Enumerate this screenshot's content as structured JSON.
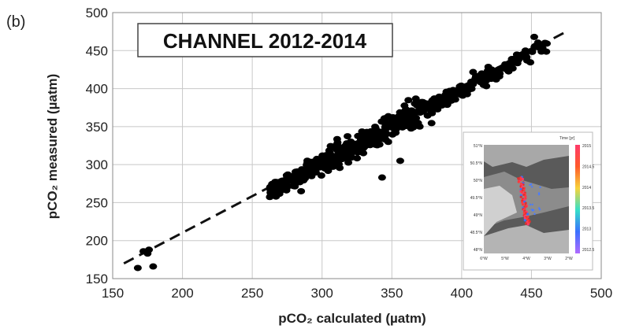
{
  "chart_data": {
    "type": "scatter",
    "panel_label": "(b)",
    "title": "CHANNEL 2012-2014",
    "xlabel": "pCO₂ calculated (µatm)",
    "ylabel": "pCO₂ measured (µatm)",
    "xlim": [
      150,
      500
    ],
    "ylim": [
      150,
      500
    ],
    "xticks": [
      "150",
      "200",
      "250",
      "300",
      "350",
      "400",
      "450",
      "500"
    ],
    "yticks": [
      "150",
      "200",
      "250",
      "300",
      "350",
      "400",
      "450",
      "500"
    ],
    "grid": true,
    "point_color": "#000000",
    "trend_line": {
      "style": "dashed",
      "x": [
        158,
        475
      ],
      "y": [
        170,
        475
      ]
    },
    "scatter_band": {
      "x_min": 262,
      "x_max": 462,
      "n_points": 520
    },
    "outliers": [
      {
        "x": 168,
        "y": 164
      },
      {
        "x": 172,
        "y": 186
      },
      {
        "x": 175,
        "y": 183
      },
      {
        "x": 176,
        "y": 188
      },
      {
        "x": 179,
        "y": 166
      },
      {
        "x": 267,
        "y": 258
      },
      {
        "x": 270,
        "y": 265
      },
      {
        "x": 285,
        "y": 265
      },
      {
        "x": 343,
        "y": 283
      },
      {
        "x": 356,
        "y": 305
      },
      {
        "x": 458,
        "y": 453
      },
      {
        "x": 452,
        "y": 468
      }
    ],
    "inset": {
      "colorbar_title": "Time [yr]",
      "colorbar_ticks": [
        "2015",
        "2014.5",
        "2014",
        "2013.5",
        "2013",
        "2012.5"
      ],
      "lat_ticks": [
        "51°N",
        "50.5°N",
        "50°N",
        "49.5°N",
        "49°N",
        "48.5°N",
        "48°N"
      ],
      "lon_ticks": [
        "6°W",
        "5°W",
        "4°W",
        "3°W",
        "2°W"
      ]
    }
  }
}
